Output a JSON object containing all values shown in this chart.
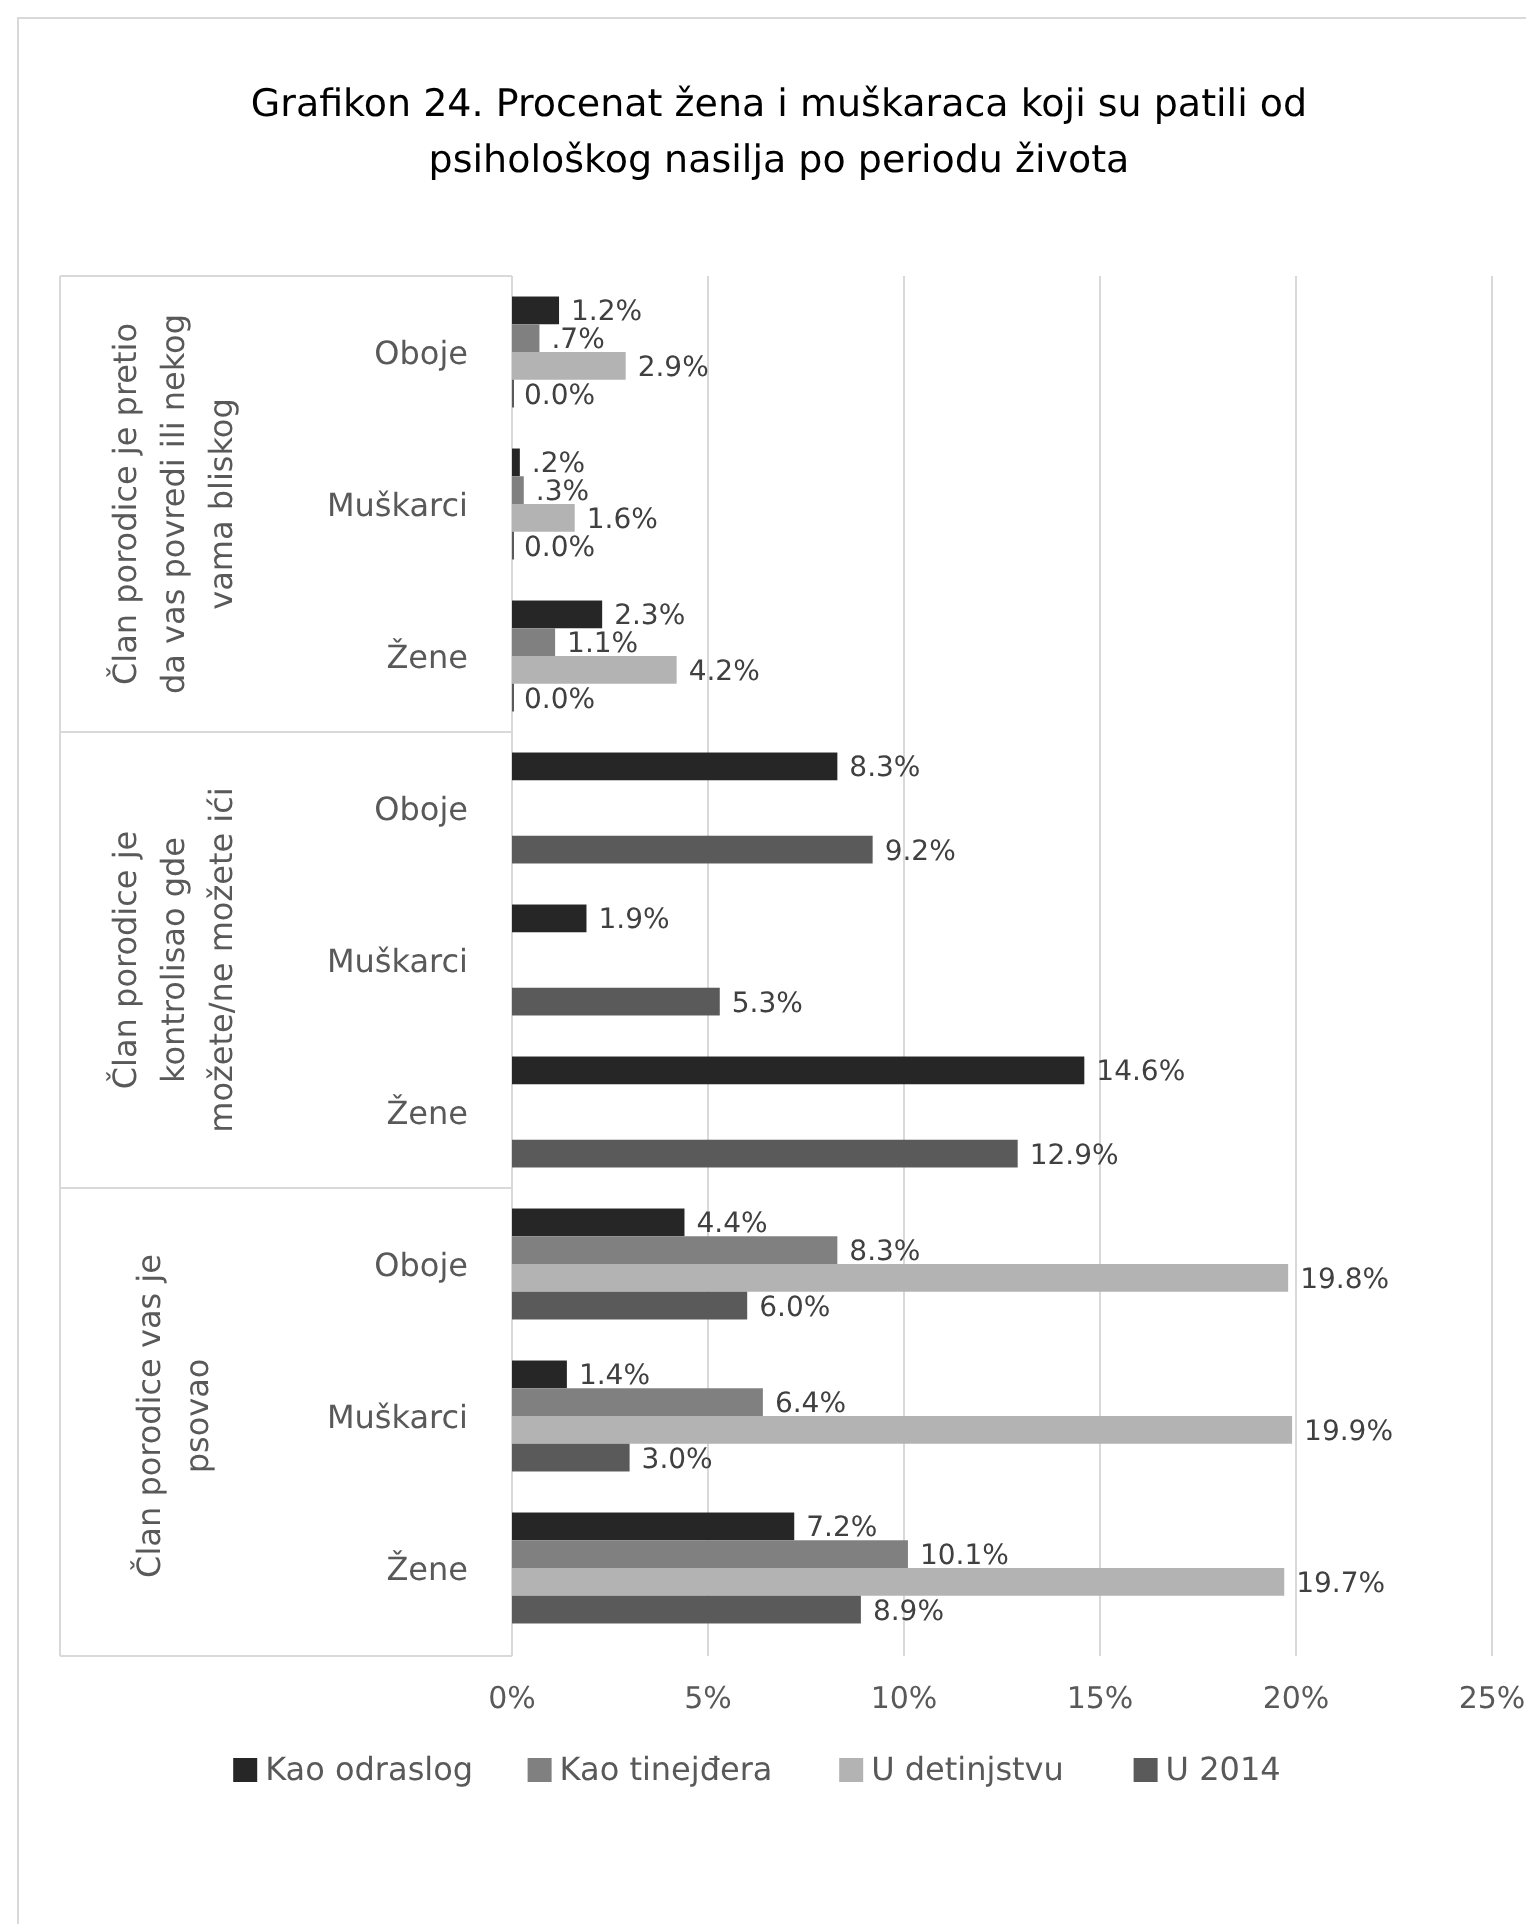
{
  "chart_data": {
    "type": "bar",
    "orientation": "horizontal",
    "title": "Grafikon 24. Procenat žena i muškaraca koji su patili od psihološkog nasilja po periodu života",
    "categories": [
      "Oboje",
      "Muškarci",
      "Žene",
      "Oboje",
      "Muškarci",
      "Žene",
      "Oboje",
      "Muškarci",
      "Žene"
    ],
    "annotations": [
      "Član porodice je pretio da vas povredi ili nekog vama bliskog",
      "Član porodice je kontrolisao gde možete/ne možete ići",
      "Član porodice vas je psovao"
    ],
    "series": [
      {
        "name": "Kao odraslog",
        "color": "#262626",
        "values": [
          1.2,
          0.2,
          2.3,
          8.3,
          1.9,
          14.6,
          4.4,
          1.4,
          7.2
        ],
        "value_labels": [
          "1.2%",
          ".2%",
          "2.3%",
          "8.3%",
          "1.9%",
          "14.6%",
          "4.4%",
          "1.4%",
          "7.2%"
        ]
      },
      {
        "name": "Kao tinejđera",
        "color": "#808080",
        "values": [
          0.7,
          0.3,
          1.1,
          null,
          null,
          null,
          8.3,
          6.4,
          10.1
        ],
        "value_labels": [
          ".7%",
          ".3%",
          "1.1%",
          null,
          null,
          null,
          "8.3%",
          "6.4%",
          "10.1%"
        ]
      },
      {
        "name": "U detinjstvu",
        "color": "#b3b3b3",
        "values": [
          2.9,
          1.6,
          4.2,
          null,
          null,
          null,
          19.8,
          19.9,
          19.7
        ],
        "value_labels": [
          "2.9%",
          "1.6%",
          "4.2%",
          null,
          null,
          null,
          "19.8%",
          "19.9%",
          "19.7%"
        ]
      },
      {
        "name": "U 2014",
        "color": "#5a5a5a",
        "values": [
          0.0,
          0.0,
          0.0,
          9.2,
          5.3,
          12.9,
          6.0,
          3.0,
          8.9
        ],
        "value_labels": [
          "0.0%",
          "0.0%",
          "0.0%",
          "9.2%",
          "5.3%",
          "12.9%",
          "6.0%",
          "3.0%",
          "8.9%"
        ]
      }
    ],
    "xlim": [
      0,
      25
    ],
    "xticks": [
      {
        "value": 0,
        "label": "0%"
      },
      {
        "value": 5,
        "label": "5%"
      },
      {
        "value": 10,
        "label": "10%"
      },
      {
        "value": 15,
        "label": "15%"
      },
      {
        "value": 20,
        "label": "20%"
      },
      {
        "value": 25,
        "label": "25%"
      }
    ],
    "grid": "x",
    "legend": "bottom"
  }
}
